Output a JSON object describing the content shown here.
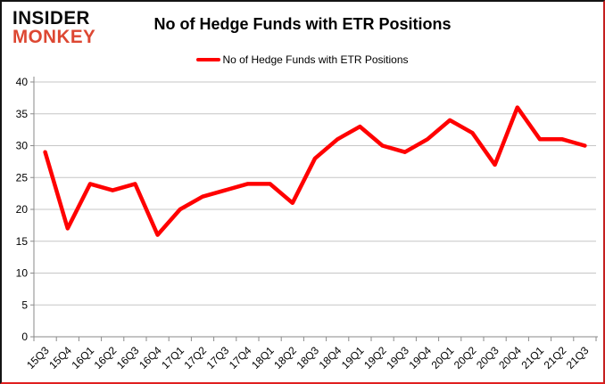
{
  "branding": {
    "line1": "INSIDER",
    "line2": "MONKEY",
    "brand_red": "#dd4732"
  },
  "header": {
    "title": "No of Hedge Funds with ETR Positions"
  },
  "legend": {
    "label": "No of Hedge Funds with ETR Positions",
    "swatch_color": "#ff0000"
  },
  "chart_data": {
    "type": "line",
    "title": "No of Hedge Funds with ETR Positions",
    "categories": [
      "15Q3",
      "15Q4",
      "16Q1",
      "16Q2",
      "16Q3",
      "16Q4",
      "17Q1",
      "17Q2",
      "17Q3",
      "17Q4",
      "18Q1",
      "18Q2",
      "18Q3",
      "18Q4",
      "19Q1",
      "19Q2",
      "19Q3",
      "19Q4",
      "20Q1",
      "20Q2",
      "20Q3",
      "20Q4",
      "21Q1",
      "21Q2",
      "21Q3"
    ],
    "series": [
      {
        "name": "No of Hedge Funds with ETR Positions",
        "color": "#ff0000",
        "values": [
          29,
          17,
          24,
          23,
          24,
          16,
          20,
          22,
          23,
          24,
          24,
          21,
          28,
          31,
          33,
          30,
          29,
          31,
          34,
          32,
          27,
          36,
          31,
          31,
          30
        ]
      }
    ],
    "xlabel": "",
    "ylabel": "",
    "ylim": [
      0,
      40
    ],
    "yticks": [
      0,
      5,
      10,
      15,
      20,
      25,
      30,
      35,
      40
    ],
    "grid": "horizontal",
    "legend_position": "top",
    "gridline_color": "#c6c6c6",
    "axis_color": "#8a8a8a",
    "label_color": "#000000"
  }
}
